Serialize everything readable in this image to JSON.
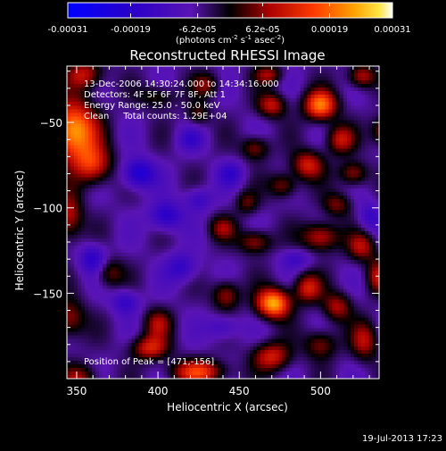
{
  "colorbar": {
    "tick_labels": [
      "-0.00031",
      "-0.00019",
      "-6.2e-05",
      "6.2e-05",
      "0.00019",
      "0.00031"
    ],
    "tick_values": [
      -0.00031,
      -0.00019,
      -6.2e-05,
      6.2e-05,
      0.00019,
      0.00031
    ],
    "range": [
      -0.00031,
      0.00031
    ],
    "unit_label": "(photons cm",
    "unit_exp1": "-2",
    "unit_mid": " s",
    "unit_exp2": "-1",
    "unit_mid2": " asec",
    "unit_exp3": "-2",
    "unit_end": ")"
  },
  "plot": {
    "title": "Reconstructed RHESSI Image",
    "info_lines": [
      "13-Dec-2006 14:30:24.000 to 14:34:16.000",
      "Detectors: 4F 5F 6F 7F 8F, Att 1",
      "Energy Range: 25.0 - 50.0 keV",
      "Clean     Total counts: 1.29E+04"
    ],
    "peak_text": "Position of Peak = [471,-156]",
    "timestamp": "19-Jul-2013 17:23"
  },
  "chart_data": {
    "type": "heatmap",
    "title": "Reconstructed RHESSI Image",
    "xlabel": "Heliocentric X (arcsec)",
    "ylabel": "Heliocentric Y (arcsec)",
    "xlim": [
      344,
      536
    ],
    "ylim": [
      -200,
      -17
    ],
    "x_ticks": [
      350,
      400,
      450,
      500
    ],
    "x_tick_labels": [
      "350",
      "400",
      "450",
      "500"
    ],
    "y_ticks": [
      -50,
      -100,
      -150
    ],
    "y_tick_labels": [
      "−50",
      "−100",
      "−150"
    ],
    "peak": {
      "x": 471,
      "y": -156
    },
    "blobs": [
      {
        "x": 348,
        "y": -55,
        "a": 1.0,
        "sx": 10,
        "sy": 12
      },
      {
        "x": 360,
        "y": -75,
        "a": 0.6,
        "sx": 8,
        "sy": 8
      },
      {
        "x": 355,
        "y": -22,
        "a": 0.5,
        "sx": 8,
        "sy": 6
      },
      {
        "x": 400,
        "y": -35,
        "a": 0.3,
        "sx": 8,
        "sy": 5
      },
      {
        "x": 345,
        "y": -105,
        "a": 0.5,
        "sx": 6,
        "sy": 10
      },
      {
        "x": 370,
        "y": -138,
        "a": 0.35,
        "sx": 6,
        "sy": 6
      },
      {
        "x": 345,
        "y": -165,
        "a": 0.45,
        "sx": 7,
        "sy": 8
      },
      {
        "x": 352,
        "y": -200,
        "a": 0.4,
        "sx": 8,
        "sy": 6
      },
      {
        "x": 400,
        "y": -168,
        "a": 0.4,
        "sx": 6,
        "sy": 6
      },
      {
        "x": 395,
        "y": -182,
        "a": 0.55,
        "sx": 8,
        "sy": 5
      },
      {
        "x": 425,
        "y": -196,
        "a": 0.65,
        "sx": 12,
        "sy": 5
      },
      {
        "x": 470,
        "y": -187,
        "a": 0.55,
        "sx": 8,
        "sy": 6
      },
      {
        "x": 500,
        "y": -180,
        "a": 0.4,
        "sx": 7,
        "sy": 6
      },
      {
        "x": 527,
        "y": -178,
        "a": 0.45,
        "sx": 6,
        "sy": 8
      },
      {
        "x": 471,
        "y": -156,
        "a": 1.0,
        "sx": 7,
        "sy": 6
      },
      {
        "x": 442,
        "y": -151,
        "a": 0.45,
        "sx": 6,
        "sy": 6
      },
      {
        "x": 492,
        "y": -147,
        "a": 0.55,
        "sx": 6,
        "sy": 6
      },
      {
        "x": 510,
        "y": -158,
        "a": 0.45,
        "sx": 6,
        "sy": 6
      },
      {
        "x": 535,
        "y": -140,
        "a": 0.45,
        "sx": 5,
        "sy": 7
      },
      {
        "x": 440,
        "y": -112,
        "a": 0.35,
        "sx": 6,
        "sy": 5
      },
      {
        "x": 460,
        "y": -120,
        "a": 0.45,
        "sx": 7,
        "sy": 5
      },
      {
        "x": 500,
        "y": -117,
        "a": 0.55,
        "sx": 8,
        "sy": 6
      },
      {
        "x": 525,
        "y": -123,
        "a": 0.45,
        "sx": 6,
        "sy": 6
      },
      {
        "x": 455,
        "y": -97,
        "a": 0.3,
        "sx": 5,
        "sy": 5
      },
      {
        "x": 477,
        "y": -87,
        "a": 0.4,
        "sx": 6,
        "sy": 5
      },
      {
        "x": 510,
        "y": -98,
        "a": 0.35,
        "sx": 6,
        "sy": 5
      },
      {
        "x": 492,
        "y": -75,
        "a": 0.55,
        "sx": 7,
        "sy": 6
      },
      {
        "x": 520,
        "y": -80,
        "a": 0.45,
        "sx": 6,
        "sy": 5
      },
      {
        "x": 460,
        "y": -65,
        "a": 0.4,
        "sx": 6,
        "sy": 5
      },
      {
        "x": 512,
        "y": -60,
        "a": 0.5,
        "sx": 6,
        "sy": 6
      },
      {
        "x": 538,
        "y": -55,
        "a": 0.45,
        "sx": 5,
        "sy": 6
      },
      {
        "x": 500,
        "y": -40,
        "a": 0.85,
        "sx": 7,
        "sy": 6
      },
      {
        "x": 470,
        "y": -40,
        "a": 0.5,
        "sx": 6,
        "sy": 5
      },
      {
        "x": 525,
        "y": -23,
        "a": 0.5,
        "sx": 6,
        "sy": 5
      },
      {
        "x": 468,
        "y": -22,
        "a": 0.4,
        "sx": 6,
        "sy": 4
      },
      {
        "x": 430,
        "y": -28,
        "a": 0.35,
        "sx": 6,
        "sy": 5
      },
      {
        "x": 425,
        "y": -45,
        "a": 0.3,
        "sx": 5,
        "sy": 5
      },
      {
        "x": 388,
        "y": -80,
        "a": -0.55,
        "sx": 7,
        "sy": 6
      },
      {
        "x": 405,
        "y": -105,
        "a": -0.45,
        "sx": 7,
        "sy": 6
      },
      {
        "x": 425,
        "y": -95,
        "a": -0.3,
        "sx": 6,
        "sy": 5
      },
      {
        "x": 445,
        "y": -80,
        "a": -0.3,
        "sx": 6,
        "sy": 5
      },
      {
        "x": 360,
        "y": -130,
        "a": -0.4,
        "sx": 6,
        "sy": 6
      },
      {
        "x": 380,
        "y": -155,
        "a": -0.35,
        "sx": 6,
        "sy": 5
      },
      {
        "x": 415,
        "y": -135,
        "a": -0.35,
        "sx": 7,
        "sy": 6
      },
      {
        "x": 440,
        "y": -170,
        "a": -0.3,
        "sx": 7,
        "sy": 5
      },
      {
        "x": 485,
        "y": -130,
        "a": -0.25,
        "sx": 7,
        "sy": 4
      },
      {
        "x": 530,
        "y": -105,
        "a": -0.3,
        "sx": 5,
        "sy": 6
      },
      {
        "x": 420,
        "y": -60,
        "a": -0.25,
        "sx": 6,
        "sy": 5
      }
    ],
    "wave": {
      "a": 0.12,
      "kx": 0.16,
      "ky": 0.11
    }
  }
}
